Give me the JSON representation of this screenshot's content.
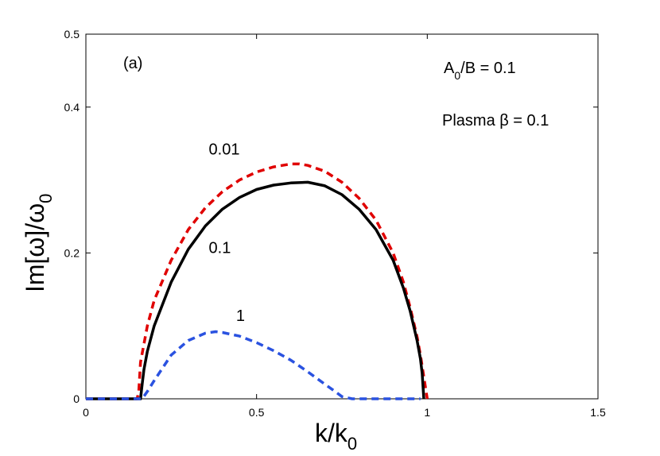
{
  "chart_data": {
    "type": "line",
    "xlabel_main": "k/k",
    "xlabel_sub": "0",
    "ylabel_main": "Im[ω]/ω",
    "ylabel_sub": "0",
    "xlim": [
      0,
      1.5
    ],
    "ylim": [
      0,
      0.5
    ],
    "xticks": [
      0,
      0.5,
      1,
      1.5
    ],
    "xtick_labels": [
      "0",
      "0.5",
      "1",
      "1.5"
    ],
    "yticks": [
      0,
      0.2,
      0.4,
      0.5
    ],
    "ytick_labels": [
      "0",
      "0.2",
      "0.4",
      "0.5"
    ],
    "grid": false,
    "panel_label": "(a)",
    "annotations": {
      "a0b_main": "A",
      "a0b_sub": "0",
      "a0b_rest": "/B = 0.1",
      "plasma": "Plasma β = 0.1"
    },
    "series": [
      {
        "name": "0.01",
        "color": "#e00000",
        "dash": true,
        "x": [
          0,
          0.15,
          0.155,
          0.16,
          0.18,
          0.2,
          0.25,
          0.3,
          0.35,
          0.4,
          0.45,
          0.5,
          0.55,
          0.6,
          0.625,
          0.65,
          0.7,
          0.75,
          0.8,
          0.85,
          0.9,
          0.93,
          0.95,
          0.97,
          0.98,
          0.99,
          1.0
        ],
        "values": [
          0,
          0,
          0.01,
          0.05,
          0.1,
          0.135,
          0.19,
          0.232,
          0.262,
          0.284,
          0.3,
          0.311,
          0.318,
          0.322,
          0.322,
          0.32,
          0.312,
          0.297,
          0.275,
          0.245,
          0.2,
          0.16,
          0.125,
          0.085,
          0.06,
          0.03,
          0
        ]
      },
      {
        "name": "0.1",
        "color": "#000000",
        "dash": false,
        "x": [
          0,
          0.16,
          0.165,
          0.17,
          0.18,
          0.2,
          0.25,
          0.3,
          0.35,
          0.4,
          0.45,
          0.5,
          0.55,
          0.6,
          0.65,
          0.7,
          0.75,
          0.8,
          0.85,
          0.9,
          0.93,
          0.95,
          0.97,
          0.98,
          0.985,
          0.99
        ],
        "values": [
          0,
          0,
          0.02,
          0.04,
          0.065,
          0.1,
          0.16,
          0.205,
          0.237,
          0.26,
          0.276,
          0.287,
          0.293,
          0.296,
          0.297,
          0.292,
          0.28,
          0.26,
          0.232,
          0.19,
          0.152,
          0.12,
          0.08,
          0.055,
          0.035,
          0
        ]
      },
      {
        "name": "1",
        "color": "#2a52e0",
        "dash": true,
        "x": [
          0,
          0.165,
          0.18,
          0.2,
          0.25,
          0.3,
          0.35,
          0.38,
          0.4,
          0.45,
          0.5,
          0.55,
          0.6,
          0.65,
          0.7,
          0.73,
          0.75,
          0.78,
          0.8,
          0.85,
          0.9,
          0.95,
          0.98
        ],
        "values": [
          0,
          0,
          0.01,
          0.025,
          0.06,
          0.08,
          0.09,
          0.092,
          0.091,
          0.086,
          0.077,
          0.066,
          0.053,
          0.037,
          0.02,
          0.01,
          0.003,
          0,
          0,
          0,
          0,
          0,
          0
        ]
      }
    ],
    "curve_labels": [
      {
        "text": "0.01",
        "x": 0.36,
        "y": 0.335
      },
      {
        "text": "0.1",
        "x": 0.36,
        "y": 0.2
      },
      {
        "text": "1",
        "x": 0.44,
        "y": 0.107
      }
    ]
  }
}
